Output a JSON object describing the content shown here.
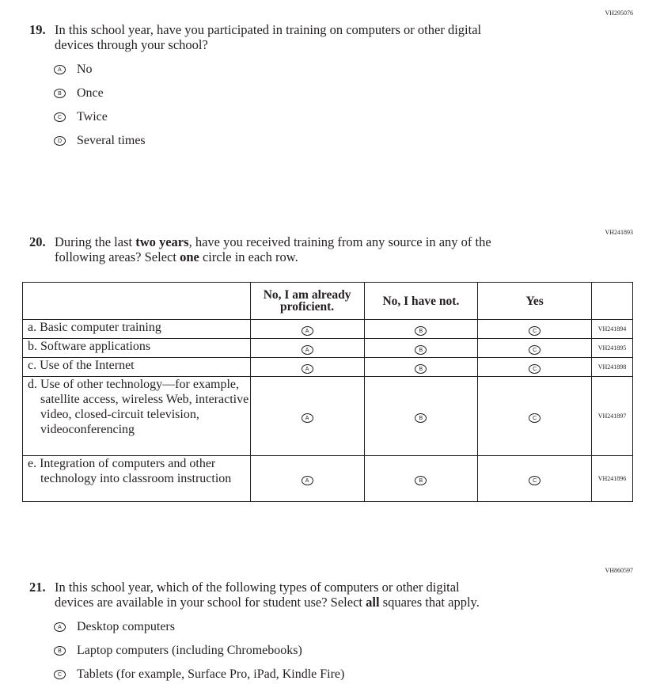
{
  "q19": {
    "code": "VH295076",
    "number": "19.",
    "text1": "In this school year, have you participated in training on computers or other digital",
    "text2": "devices through your school?",
    "options": [
      {
        "letter": "A",
        "label": "No"
      },
      {
        "letter": "B",
        "label": "Once"
      },
      {
        "letter": "C",
        "label": "Twice"
      },
      {
        "letter": "D",
        "label": "Several times"
      }
    ]
  },
  "q20": {
    "code": "VH241893",
    "number": "20.",
    "text1a": "During the last ",
    "text1b": "two years",
    "text1c": ", have you received training from any source in any of the",
    "text2a": "following areas? Select ",
    "text2b": "one",
    "text2c": " circle in each row.",
    "columns": [
      "No, I am already proficient.",
      "No, I have not.",
      "Yes"
    ],
    "letters": [
      "A",
      "B",
      "C"
    ],
    "rows": [
      {
        "label": "a. Basic computer training",
        "code": "VH241894"
      },
      {
        "label": "b. Software applications",
        "code": "VH241895"
      },
      {
        "label": "c. Use of the Internet",
        "code": "VH241898"
      },
      {
        "label": "d. Use of other technology—for example, satellite access, wireless Web, interactive video, closed-circuit television, videoconferencing",
        "code": "VH241897"
      },
      {
        "label": "e. Integration of computers and other technology into classroom instruction",
        "code": "VH241896"
      }
    ]
  },
  "q21": {
    "code": "VH860597",
    "number": "21.",
    "text1": "In this school year, which of the following types of computers or other digital",
    "text2a": "devices are available in your school for student use? Select ",
    "text2b": "all",
    "text2c": " squares that apply.",
    "options": [
      {
        "letter": "A",
        "label": "Desktop computers"
      },
      {
        "letter": "B",
        "label": "Laptop computers (including Chromebooks)"
      },
      {
        "letter": "C",
        "label": "Tablets (for example, Surface Pro, iPad, Kindle Fire)"
      }
    ]
  }
}
